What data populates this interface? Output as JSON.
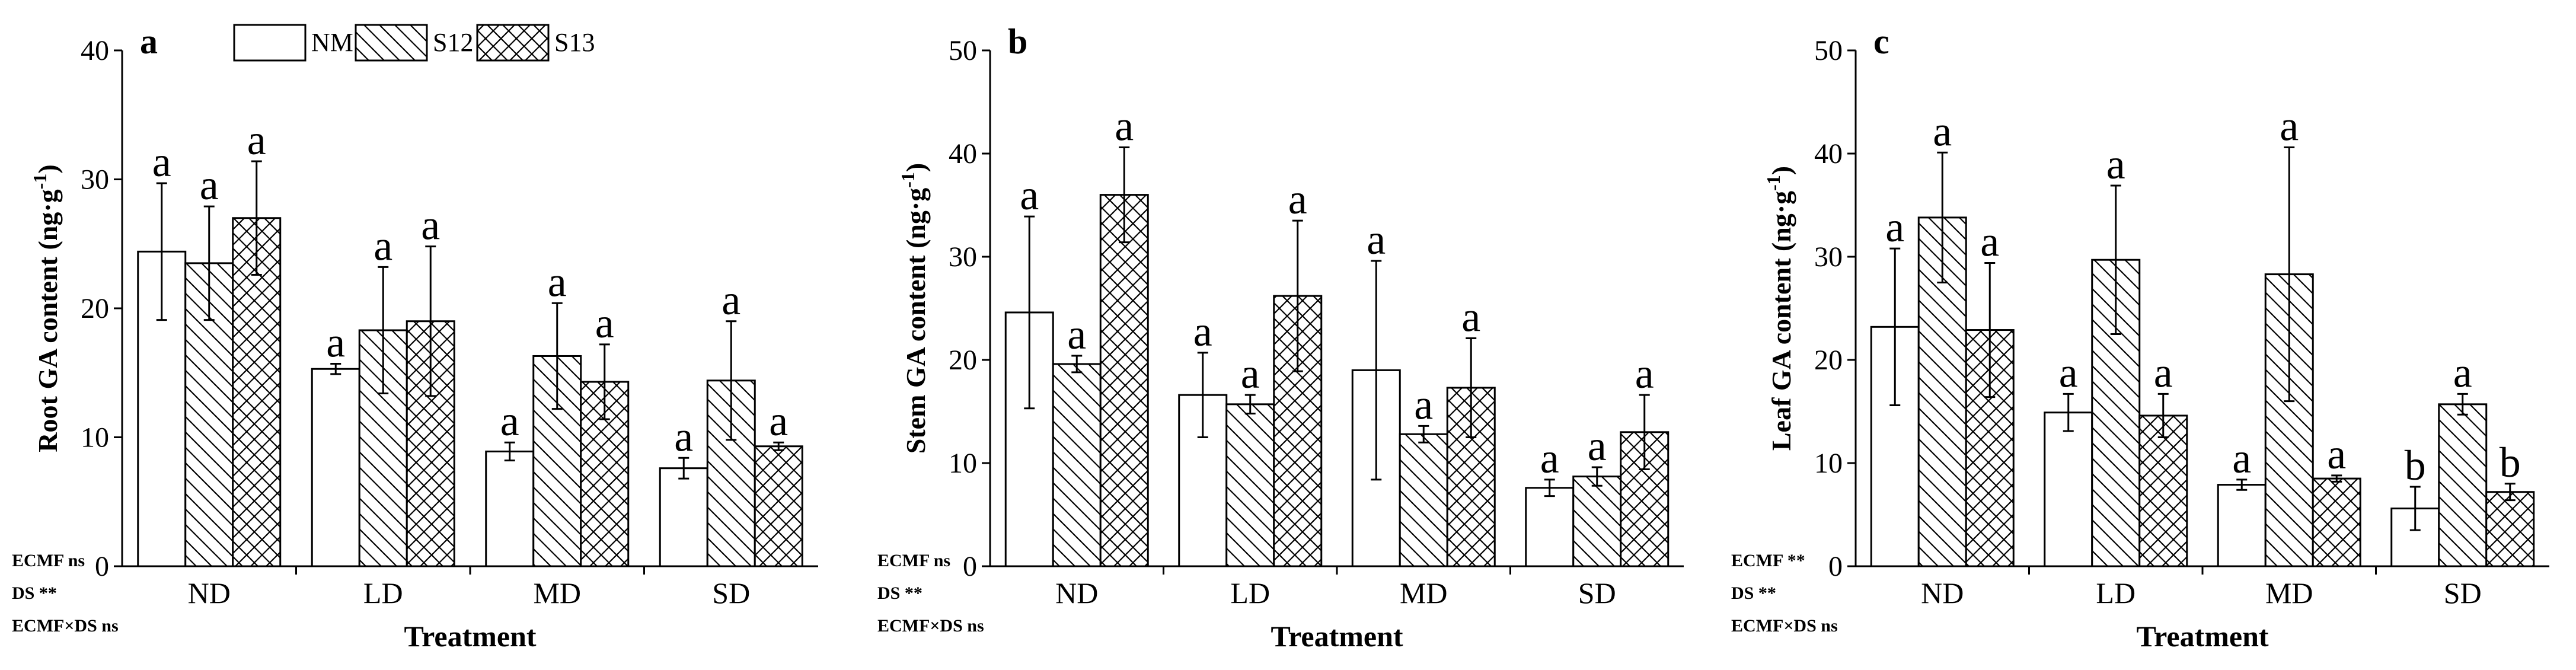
{
  "chart_data": [
    {
      "panel": "a",
      "type": "bar",
      "title": "",
      "ylabel": "Root GA content (ng·g-1)",
      "ylabel_parts": {
        "main": "Root GA content (ng·g",
        "sup": "-1",
        "end": ")"
      },
      "xlabel": "Treatment",
      "ylim": [
        0,
        40
      ],
      "yticks": [
        0,
        10,
        20,
        30,
        40
      ],
      "grid": false,
      "legend": {
        "position": "top",
        "entries": [
          "NM",
          "S12",
          "S13"
        ]
      },
      "categories": [
        "ND",
        "LD",
        "MD",
        "SD"
      ],
      "series": [
        {
          "name": "NM",
          "values": [
            24.4,
            15.3,
            8.9,
            7.6
          ],
          "errors": [
            5.3,
            0.4,
            0.7,
            0.8
          ],
          "letters": [
            "a",
            "a",
            "a",
            "a"
          ]
        },
        {
          "name": "S12",
          "values": [
            23.5,
            18.3,
            16.3,
            14.4
          ],
          "errors": [
            4.4,
            4.9,
            4.1,
            4.6
          ],
          "letters": [
            "a",
            "a",
            "a",
            "a"
          ]
        },
        {
          "name": "S13",
          "values": [
            27.0,
            19.0,
            14.3,
            9.3
          ],
          "errors": [
            4.4,
            5.8,
            2.9,
            0.3
          ],
          "letters": [
            "a",
            "a",
            "a",
            "a"
          ]
        }
      ],
      "stats": [
        "ECMF ns",
        "DS **",
        "ECMF×DS ns"
      ]
    },
    {
      "panel": "b",
      "type": "bar",
      "title": "",
      "ylabel": "Stem GA content (ng·g-1)",
      "ylabel_parts": {
        "main": "Stem GA content (ng·g",
        "sup": "-1",
        "end": ")"
      },
      "xlabel": "Treatment",
      "ylim": [
        0,
        50
      ],
      "yticks": [
        0,
        10,
        20,
        30,
        40,
        50
      ],
      "grid": false,
      "legend": {
        "position": "none",
        "entries": []
      },
      "categories": [
        "ND",
        "LD",
        "MD",
        "SD"
      ],
      "series": [
        {
          "name": "NM",
          "values": [
            24.6,
            16.6,
            19.0,
            7.6
          ],
          "errors": [
            9.3,
            4.1,
            10.6,
            0.8
          ],
          "letters": [
            "a",
            "a",
            "a",
            "a"
          ]
        },
        {
          "name": "S12",
          "values": [
            19.6,
            15.7,
            12.8,
            8.7
          ],
          "errors": [
            0.8,
            0.9,
            0.8,
            0.9
          ],
          "letters": [
            "a",
            "a",
            "a",
            "a"
          ]
        },
        {
          "name": "S13",
          "values": [
            36.0,
            26.2,
            17.3,
            13.0
          ],
          "errors": [
            4.6,
            7.3,
            4.8,
            3.6
          ],
          "letters": [
            "a",
            "a",
            "a",
            "a"
          ]
        }
      ],
      "stats": [
        "ECMF ns",
        "DS **",
        "ECMF×DS ns"
      ]
    },
    {
      "panel": "c",
      "type": "bar",
      "title": "",
      "ylabel": "Leaf GA content (ng·g-1)",
      "ylabel_parts": {
        "main": "Leaf GA content (ng·g",
        "sup": "-1",
        "end": ")"
      },
      "xlabel": "Treatment",
      "ylim": [
        0,
        50
      ],
      "yticks": [
        0,
        10,
        20,
        30,
        40,
        50
      ],
      "grid": false,
      "legend": {
        "position": "none",
        "entries": []
      },
      "categories": [
        "ND",
        "LD",
        "MD",
        "SD"
      ],
      "series": [
        {
          "name": "NM",
          "values": [
            23.2,
            14.9,
            7.9,
            5.6
          ],
          "errors": [
            7.6,
            1.8,
            0.5,
            2.1
          ],
          "letters": [
            "a",
            "a",
            "a",
            "b"
          ]
        },
        {
          "name": "S12",
          "values": [
            33.8,
            29.7,
            28.3,
            15.7
          ],
          "errors": [
            6.3,
            7.2,
            12.3,
            1.0
          ],
          "letters": [
            "a",
            "a",
            "a",
            "a"
          ]
        },
        {
          "name": "S13",
          "values": [
            22.9,
            14.6,
            8.5,
            7.2
          ],
          "errors": [
            6.5,
            2.1,
            0.3,
            0.8
          ],
          "letters": [
            "a",
            "a",
            "a",
            "b"
          ]
        }
      ],
      "stats": [
        "ECMF **",
        "DS **",
        "ECMF×DS ns"
      ]
    }
  ]
}
